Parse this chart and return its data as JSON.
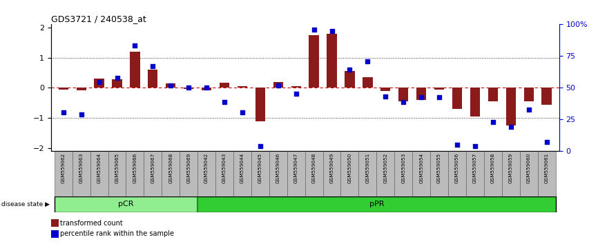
{
  "title": "GDS3721 / 240538_at",
  "samples": [
    "GSM559062",
    "GSM559063",
    "GSM559064",
    "GSM559065",
    "GSM559066",
    "GSM559067",
    "GSM559068",
    "GSM559069",
    "GSM559042",
    "GSM559043",
    "GSM559044",
    "GSM559045",
    "GSM559046",
    "GSM559047",
    "GSM559048",
    "GSM559049",
    "GSM559050",
    "GSM559051",
    "GSM559052",
    "GSM559053",
    "GSM559054",
    "GSM559055",
    "GSM559056",
    "GSM559057",
    "GSM559058",
    "GSM559059",
    "GSM559060",
    "GSM559061"
  ],
  "bar_values": [
    -0.05,
    -0.08,
    0.3,
    0.28,
    1.2,
    0.6,
    0.15,
    -0.03,
    -0.07,
    0.17,
    0.05,
    -1.1,
    0.2,
    0.05,
    1.75,
    1.8,
    0.55,
    0.35,
    -0.1,
    -0.45,
    -0.4,
    -0.05,
    -0.7,
    -0.95,
    -0.45,
    -1.25,
    -0.45,
    -0.55
  ],
  "dot_values": [
    30,
    28,
    55,
    58,
    85,
    68,
    52,
    50,
    50,
    38,
    30,
    2,
    52,
    45,
    98,
    97,
    65,
    72,
    43,
    38,
    42,
    42,
    3,
    2,
    22,
    18,
    32,
    5
  ],
  "pCR_count": 8,
  "pPR_count": 20,
  "bar_color": "#8B1A1A",
  "dot_color": "#0000CD",
  "zero_line_color": "#CC0000",
  "dotted_line_color": "#333333",
  "pCR_color": "#90EE90",
  "pPR_color": "#32CD32",
  "label_bg_color": "#BBBBBB",
  "ylim": [
    -2.1,
    2.1
  ],
  "legend_bar": "transformed count",
  "legend_dot": "percentile rank within the sample",
  "disease_state_label": "disease state"
}
